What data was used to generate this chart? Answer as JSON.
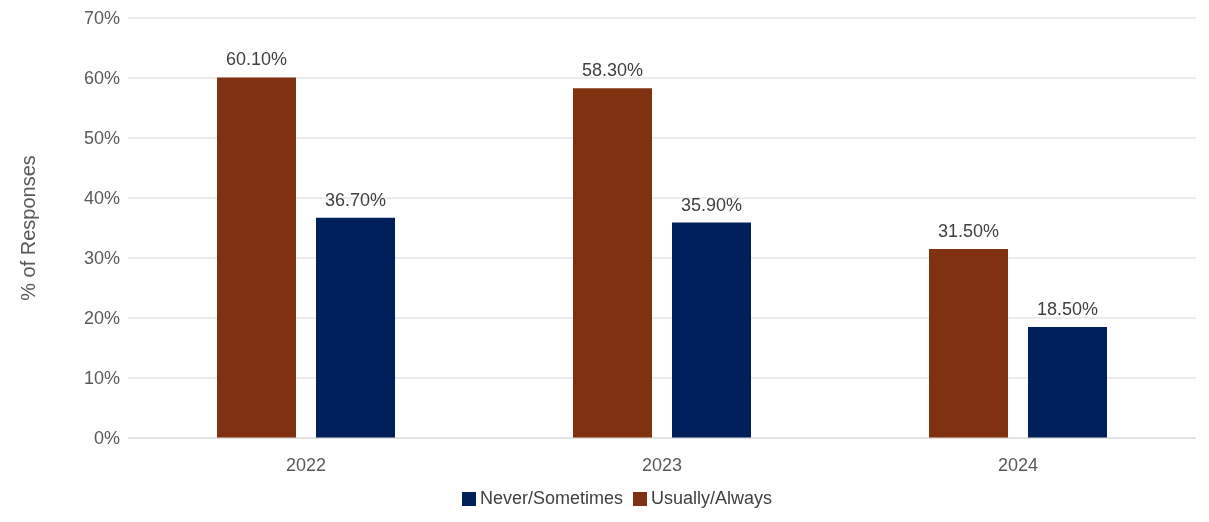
{
  "chart_data": {
    "type": "bar",
    "ylabel": "% of Responses",
    "categories": [
      "2022",
      "2023",
      "2024"
    ],
    "series": [
      {
        "name": "Usually/Always",
        "color": "#7f3110",
        "values": [
          60.1,
          58.3,
          31.5
        ],
        "value_labels": [
          "60.10%",
          "58.30%",
          "31.50%"
        ]
      },
      {
        "name": "Never/Sometimes",
        "color": "#00205b",
        "values": [
          36.7,
          35.9,
          18.5
        ],
        "value_labels": [
          "36.70%",
          "35.90%",
          "18.50%"
        ]
      }
    ],
    "ylim": [
      0,
      70
    ],
    "yticks": [
      {
        "value": 0,
        "label": "0%"
      },
      {
        "value": 10,
        "label": "10%"
      },
      {
        "value": 20,
        "label": "20%"
      },
      {
        "value": 30,
        "label": "30%"
      },
      {
        "value": 40,
        "label": "40%"
      },
      {
        "value": 50,
        "label": "50%"
      },
      {
        "value": 60,
        "label": "60%"
      },
      {
        "value": 70,
        "label": "70%"
      }
    ],
    "grid": "y",
    "legend": "bottom"
  }
}
